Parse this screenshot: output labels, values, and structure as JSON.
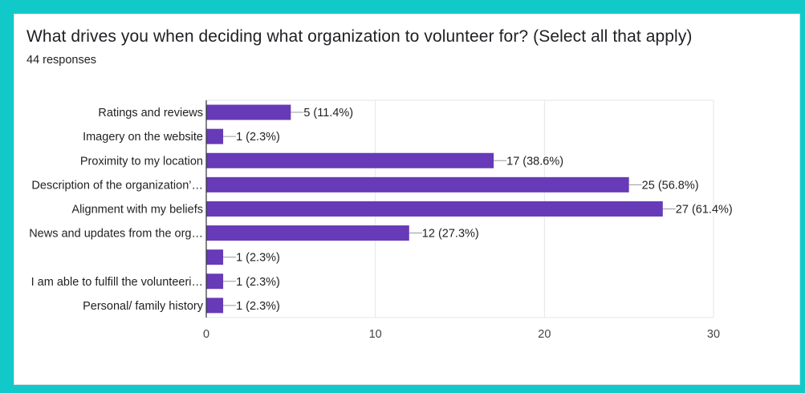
{
  "question": "What drives you when deciding what organization to volunteer for? (Select all that apply)",
  "responses_label": "44 responses",
  "colors": {
    "bar": "#673ab7",
    "border": "#12c9c9",
    "grid": "#e6e6e6",
    "text": "#222222"
  },
  "chart_data": {
    "type": "bar",
    "orientation": "horizontal",
    "categories": [
      "Ratings and reviews",
      "Imagery on the website",
      "Proximity to my location",
      "Description of the organization’…",
      "Alignment with my beliefs",
      "News and updates from the org…",
      "",
      "I am able to fulfill the volunteeri…",
      "Personal/ family history"
    ],
    "values": [
      5,
      1,
      17,
      25,
      27,
      12,
      1,
      1,
      1
    ],
    "data_labels": [
      "5 (11.4%)",
      "1 (2.3%)",
      "17 (38.6%)",
      "25 (56.8%)",
      "27 (61.4%)",
      "12 (27.3%)",
      "1 (2.3%)",
      "1 (2.3%)",
      "1 (2.3%)"
    ],
    "xlim": [
      0,
      30
    ],
    "xticks": [
      0,
      10,
      20,
      30
    ],
    "grid": true
  }
}
